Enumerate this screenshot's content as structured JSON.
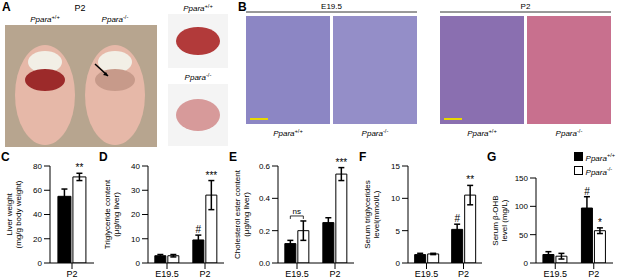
{
  "panels": {
    "A": {
      "panel": "A",
      "title": "P2",
      "mice": [
        "Ppara+/+",
        "Ppara-/-"
      ],
      "livers": [
        "Ppara+/+",
        "Ppara-/-"
      ]
    },
    "B": {
      "panel": "B",
      "groups": [
        {
          "title": "E19.5",
          "labels": [
            "Ppara+/+",
            "Ppara-/-"
          ]
        },
        {
          "title": "P2",
          "labels": [
            "Ppara+/+",
            "Ppara-/-"
          ]
        }
      ]
    }
  },
  "chart_data": [
    {
      "type": "bar",
      "panel": "C",
      "y_label": [
        "Liver weight",
        "(mg/g body weight)"
      ],
      "categories": [
        "P2"
      ],
      "series": [
        {
          "name": "Ppara+/+",
          "color": "#000000",
          "values": [
            55
          ],
          "errors": [
            6
          ],
          "annotations": [
            null
          ]
        },
        {
          "name": "Ppara-/-",
          "color": "#ffffff",
          "values": [
            71
          ],
          "errors": [
            3
          ],
          "annotations": [
            "**"
          ]
        }
      ],
      "ylim": [
        0,
        80
      ],
      "yticks": [
        0,
        20,
        40,
        60,
        80
      ]
    },
    {
      "type": "bar",
      "panel": "D",
      "y_label": [
        "Triglyceride content",
        "(μg/mg liver)"
      ],
      "categories": [
        "E19.5",
        "P2"
      ],
      "series": [
        {
          "name": "Ppara+/+",
          "color": "#000000",
          "values": [
            3,
            9.5
          ],
          "errors": [
            0.5,
            2
          ],
          "annotations": [
            null,
            "#"
          ]
        },
        {
          "name": "Ppara-/-",
          "color": "#ffffff",
          "values": [
            3,
            28
          ],
          "errors": [
            0.5,
            6
          ],
          "annotations": [
            null,
            "***"
          ]
        }
      ],
      "ylim": [
        0,
        40
      ],
      "yticks": [
        0,
        10,
        20,
        30,
        40
      ]
    },
    {
      "type": "bar",
      "panel": "E",
      "y_label": [
        "Cholesterol ester content",
        "(μg/mg liver)"
      ],
      "categories": [
        "E19.5",
        "P2"
      ],
      "series": [
        {
          "name": "Ppara+/+",
          "color": "#000000",
          "values": [
            0.12,
            0.25
          ],
          "errors": [
            0.02,
            0.03
          ],
          "annotations": [
            null,
            null
          ]
        },
        {
          "name": "Ppara-/-",
          "color": "#ffffff",
          "values": [
            0.2,
            0.55
          ],
          "errors": [
            0.06,
            0.04
          ],
          "annotations": [
            null,
            "***"
          ]
        }
      ],
      "brackets": [
        {
          "category": "E19.5",
          "label": "ns"
        }
      ],
      "ylim": [
        0,
        0.6
      ],
      "yticks": [
        {
          "value": 0,
          "label": "0.0"
        },
        0.2,
        0.4,
        0.6
      ]
    },
    {
      "type": "bar",
      "panel": "F",
      "y_label": [
        "Serum triglycerides",
        "level(mmol/L)"
      ],
      "categories": [
        "E19.5",
        "P2"
      ],
      "series": [
        {
          "name": "Ppara+/+",
          "color": "#000000",
          "values": [
            1.3,
            5.2
          ],
          "errors": [
            0.2,
            0.8
          ],
          "annotations": [
            null,
            "#"
          ]
        },
        {
          "name": "Ppara-/-",
          "color": "#ffffff",
          "values": [
            1.4,
            10.5
          ],
          "errors": [
            0.1,
            1.5
          ],
          "annotations": [
            null,
            "**"
          ]
        }
      ],
      "ylim": [
        0,
        15
      ],
      "yticks": [
        0,
        5,
        10,
        15
      ]
    },
    {
      "type": "bar",
      "panel": "G",
      "y_label": [
        "Serum β-OHB",
        "level (mg/L)"
      ],
      "categories": [
        "E19.5",
        "P2"
      ],
      "series": [
        {
          "name": "Ppara+/+",
          "color": "#000000",
          "values": [
            15,
            97
          ],
          "errors": [
            5,
            20
          ],
          "annotations": [
            null,
            "#"
          ]
        },
        {
          "name": "Ppara-/-",
          "color": "#ffffff",
          "values": [
            12,
            57
          ],
          "errors": [
            5,
            5
          ],
          "annotations": [
            null,
            "*"
          ]
        }
      ],
      "ylim": [
        0,
        150
      ],
      "yticks": [
        0,
        50,
        100,
        150
      ],
      "legend": "upper right"
    }
  ]
}
